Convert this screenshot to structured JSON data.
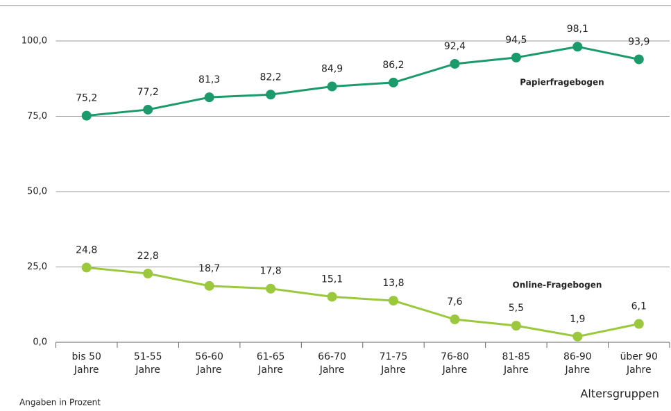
{
  "chart_data": {
    "type": "line",
    "categories": [
      [
        "bis 50",
        "Jahre"
      ],
      [
        "51-55",
        "Jahre"
      ],
      [
        "56-60",
        "Jahre"
      ],
      [
        "61-65",
        "Jahre"
      ],
      [
        "66-70",
        "Jahre"
      ],
      [
        "71-75",
        "Jahre"
      ],
      [
        "76-80",
        "Jahre"
      ],
      [
        "81-85",
        "Jahre"
      ],
      [
        "86-90",
        "Jahre"
      ],
      [
        "über 90",
        "Jahre"
      ]
    ],
    "series": [
      {
        "name": "Papierfragebogen",
        "color": "#1b9a6c",
        "values": [
          75.2,
          77.2,
          81.3,
          82.2,
          84.9,
          86.2,
          92.4,
          94.5,
          98.1,
          93.9
        ],
        "value_labels": [
          "75,2",
          "77,2",
          "81,3",
          "82,2",
          "84,9",
          "86,2",
          "92,4",
          "94,5",
          "98,1",
          "93,9"
        ]
      },
      {
        "name": "Online-Fragebogen",
        "color": "#9bc83c",
        "values": [
          24.8,
          22.8,
          18.7,
          17.8,
          15.1,
          13.8,
          7.6,
          5.5,
          1.9,
          6.1
        ],
        "value_labels": [
          "24,8",
          "22,8",
          "18,7",
          "17,8",
          "15,1",
          "13,8",
          "7,6",
          "5,5",
          "1,9",
          "6,1"
        ]
      }
    ],
    "ylim": [
      0,
      100
    ],
    "yticks": [
      {
        "value": 0,
        "label": "0,0"
      },
      {
        "value": 25,
        "label": "25,0"
      },
      {
        "value": 50,
        "label": "50,0"
      },
      {
        "value": 75,
        "label": "75,0"
      },
      {
        "value": 100,
        "label": "100,0"
      }
    ],
    "grid": true,
    "xlabel": "Altersgruppen",
    "note": "Angaben in Prozent"
  }
}
